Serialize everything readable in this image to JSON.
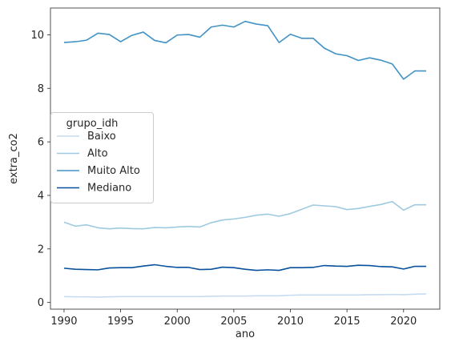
{
  "chart_data": {
    "type": "line",
    "title": "",
    "xlabel": "ano",
    "ylabel": "extra_co2",
    "xlim": [
      1988.8,
      2023.2
    ],
    "ylim": [
      -0.25,
      11.0
    ],
    "xticks": [
      1990,
      1995,
      2000,
      2005,
      2010,
      2015,
      2020
    ],
    "yticks": [
      0,
      2,
      4,
      6,
      8,
      10
    ],
    "grid": false,
    "legend": {
      "title": "grupo_idh",
      "placement": "center-left"
    },
    "x": [
      1990,
      1991,
      1992,
      1993,
      1994,
      1995,
      1996,
      1997,
      1998,
      1999,
      2000,
      2001,
      2002,
      2003,
      2004,
      2005,
      2006,
      2007,
      2008,
      2009,
      2010,
      2011,
      2012,
      2013,
      2014,
      2015,
      2016,
      2017,
      2018,
      2019,
      2020,
      2021,
      2022
    ],
    "series": [
      {
        "name": "Baixo",
        "color": "#c6dbef",
        "values": [
          0.22,
          0.21,
          0.21,
          0.2,
          0.21,
          0.22,
          0.22,
          0.22,
          0.22,
          0.22,
          0.22,
          0.22,
          0.22,
          0.23,
          0.24,
          0.24,
          0.24,
          0.25,
          0.25,
          0.25,
          0.27,
          0.28,
          0.28,
          0.28,
          0.28,
          0.28,
          0.28,
          0.29,
          0.29,
          0.3,
          0.29,
          0.31,
          0.32
        ]
      },
      {
        "name": "Alto",
        "color": "#9ecae1",
        "values": [
          3.0,
          2.85,
          2.9,
          2.79,
          2.75,
          2.78,
          2.76,
          2.75,
          2.8,
          2.79,
          2.82,
          2.84,
          2.82,
          2.98,
          3.08,
          3.12,
          3.18,
          3.26,
          3.3,
          3.22,
          3.32,
          3.48,
          3.64,
          3.61,
          3.58,
          3.47,
          3.51,
          3.59,
          3.66,
          3.77,
          3.45,
          3.65,
          3.65
        ]
      },
      {
        "name": "Muito Alto",
        "color": "#4292c6",
        "values": [
          9.71,
          9.74,
          9.8,
          10.06,
          10.01,
          9.74,
          9.98,
          10.1,
          9.79,
          9.7,
          9.99,
          10.01,
          9.91,
          10.29,
          10.36,
          10.29,
          10.5,
          10.4,
          10.34,
          9.71,
          10.02,
          9.87,
          9.87,
          9.5,
          9.29,
          9.22,
          9.04,
          9.14,
          9.05,
          8.91,
          8.34,
          8.65,
          8.65
        ]
      },
      {
        "name": "Mediano",
        "color": "#08519c",
        "values": [
          1.28,
          1.24,
          1.23,
          1.22,
          1.29,
          1.3,
          1.3,
          1.36,
          1.41,
          1.35,
          1.31,
          1.31,
          1.23,
          1.24,
          1.32,
          1.3,
          1.24,
          1.2,
          1.22,
          1.2,
          1.3,
          1.3,
          1.31,
          1.38,
          1.36,
          1.35,
          1.39,
          1.38,
          1.34,
          1.33,
          1.25,
          1.35,
          1.35
        ]
      }
    ]
  }
}
